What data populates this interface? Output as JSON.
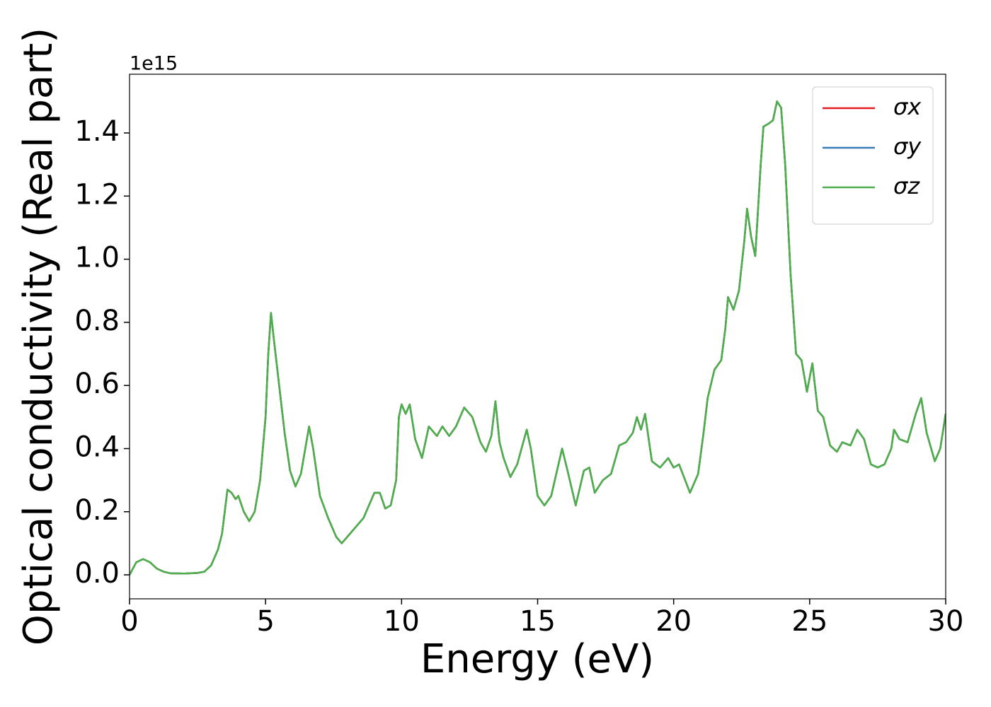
{
  "chart_data": {
    "type": "line",
    "xlabel": "Energy (eV)",
    "ylabel": "Optical conductivity (Real part)",
    "y_offset_label": "1e15",
    "x": [
      0,
      0.25,
      0.5,
      0.75,
      1.0,
      1.25,
      1.5,
      2,
      2.5,
      2.75,
      3.0,
      3.25,
      3.4,
      3.6,
      3.75,
      3.9,
      4.0,
      4.2,
      4.4,
      4.6,
      4.8,
      5.0,
      5.1,
      5.2,
      5.3,
      5.5,
      5.7,
      5.9,
      6.1,
      6.3,
      6.5,
      6.6,
      6.75,
      7.0,
      7.3,
      7.6,
      7.8,
      8.0,
      8.3,
      8.6,
      8.8,
      9.0,
      9.2,
      9.4,
      9.6,
      9.8,
      9.9,
      10.0,
      10.15,
      10.3,
      10.5,
      10.75,
      11.0,
      11.3,
      11.5,
      11.75,
      12.0,
      12.3,
      12.6,
      12.9,
      13.1,
      13.3,
      13.45,
      13.6,
      13.75,
      14.0,
      14.25,
      14.6,
      14.75,
      15.0,
      15.25,
      15.5,
      15.9,
      16.1,
      16.4,
      16.7,
      16.9,
      17.1,
      17.4,
      17.7,
      18.0,
      18.25,
      18.5,
      18.65,
      18.8,
      18.95,
      19.2,
      19.5,
      19.8,
      20.0,
      20.2,
      20.6,
      20.9,
      21.1,
      21.25,
      21.5,
      21.75,
      21.9,
      22.0,
      22.2,
      22.4,
      22.6,
      22.7,
      22.85,
      23.0,
      23.2,
      23.3,
      23.5,
      23.65,
      23.8,
      23.95,
      24.1,
      24.3,
      24.5,
      24.7,
      24.9,
      25.1,
      25.3,
      25.5,
      25.75,
      26.0,
      26.2,
      26.5,
      26.75,
      27.0,
      27.25,
      27.5,
      27.75,
      28.0,
      28.1,
      28.3,
      28.6,
      28.9,
      29.1,
      29.3,
      29.6,
      29.8,
      30.0
    ],
    "series": [
      {
        "name": "σx",
        "color": "#e41a1c",
        "values": [
          0.0,
          0.04,
          0.05,
          0.04,
          0.02,
          0.01,
          0.005,
          0.004,
          0.006,
          0.01,
          0.03,
          0.08,
          0.13,
          0.27,
          0.26,
          0.24,
          0.25,
          0.2,
          0.17,
          0.2,
          0.3,
          0.5,
          0.7,
          0.83,
          0.75,
          0.6,
          0.45,
          0.33,
          0.28,
          0.32,
          0.42,
          0.47,
          0.4,
          0.25,
          0.18,
          0.12,
          0.1,
          0.12,
          0.15,
          0.18,
          0.22,
          0.26,
          0.26,
          0.21,
          0.22,
          0.3,
          0.5,
          0.54,
          0.51,
          0.54,
          0.43,
          0.37,
          0.47,
          0.44,
          0.47,
          0.44,
          0.47,
          0.53,
          0.5,
          0.42,
          0.39,
          0.44,
          0.55,
          0.42,
          0.37,
          0.31,
          0.35,
          0.46,
          0.4,
          0.25,
          0.22,
          0.25,
          0.4,
          0.33,
          0.22,
          0.33,
          0.34,
          0.26,
          0.3,
          0.32,
          0.41,
          0.42,
          0.45,
          0.5,
          0.46,
          0.51,
          0.36,
          0.34,
          0.37,
          0.34,
          0.35,
          0.26,
          0.32,
          0.45,
          0.56,
          0.65,
          0.68,
          0.78,
          0.88,
          0.84,
          0.9,
          1.06,
          1.16,
          1.07,
          1.01,
          1.3,
          1.42,
          1.43,
          1.44,
          1.5,
          1.48,
          1.3,
          0.95,
          0.7,
          0.68,
          0.58,
          0.67,
          0.52,
          0.5,
          0.41,
          0.39,
          0.42,
          0.41,
          0.46,
          0.43,
          0.35,
          0.34,
          0.35,
          0.4,
          0.46,
          0.43,
          0.42,
          0.51,
          0.56,
          0.45,
          0.36,
          0.4,
          0.51
        ]
      },
      {
        "name": "σy",
        "color": "#377eb8",
        "values": [
          0.0,
          0.04,
          0.05,
          0.04,
          0.02,
          0.01,
          0.005,
          0.004,
          0.006,
          0.01,
          0.03,
          0.08,
          0.13,
          0.27,
          0.26,
          0.24,
          0.25,
          0.2,
          0.17,
          0.2,
          0.3,
          0.5,
          0.7,
          0.83,
          0.75,
          0.6,
          0.45,
          0.33,
          0.28,
          0.32,
          0.42,
          0.47,
          0.4,
          0.25,
          0.18,
          0.12,
          0.1,
          0.12,
          0.15,
          0.18,
          0.22,
          0.26,
          0.26,
          0.21,
          0.22,
          0.3,
          0.5,
          0.54,
          0.51,
          0.54,
          0.43,
          0.37,
          0.47,
          0.44,
          0.47,
          0.44,
          0.47,
          0.53,
          0.5,
          0.42,
          0.39,
          0.44,
          0.55,
          0.42,
          0.37,
          0.31,
          0.35,
          0.46,
          0.4,
          0.25,
          0.22,
          0.25,
          0.4,
          0.33,
          0.22,
          0.33,
          0.34,
          0.26,
          0.3,
          0.32,
          0.41,
          0.42,
          0.45,
          0.5,
          0.46,
          0.51,
          0.36,
          0.34,
          0.37,
          0.34,
          0.35,
          0.26,
          0.32,
          0.45,
          0.56,
          0.65,
          0.68,
          0.78,
          0.88,
          0.84,
          0.9,
          1.06,
          1.16,
          1.07,
          1.01,
          1.3,
          1.42,
          1.43,
          1.44,
          1.5,
          1.48,
          1.3,
          0.95,
          0.7,
          0.68,
          0.58,
          0.67,
          0.52,
          0.5,
          0.41,
          0.39,
          0.42,
          0.41,
          0.46,
          0.43,
          0.35,
          0.34,
          0.35,
          0.4,
          0.46,
          0.43,
          0.42,
          0.51,
          0.56,
          0.45,
          0.36,
          0.4,
          0.51
        ]
      },
      {
        "name": "σz",
        "color": "#4daf4a",
        "values": [
          0.0,
          0.04,
          0.05,
          0.04,
          0.02,
          0.01,
          0.005,
          0.004,
          0.006,
          0.01,
          0.03,
          0.08,
          0.13,
          0.27,
          0.26,
          0.24,
          0.25,
          0.2,
          0.17,
          0.2,
          0.3,
          0.5,
          0.7,
          0.83,
          0.75,
          0.6,
          0.45,
          0.33,
          0.28,
          0.32,
          0.42,
          0.47,
          0.4,
          0.25,
          0.18,
          0.12,
          0.1,
          0.12,
          0.15,
          0.18,
          0.22,
          0.26,
          0.26,
          0.21,
          0.22,
          0.3,
          0.5,
          0.54,
          0.51,
          0.54,
          0.43,
          0.37,
          0.47,
          0.44,
          0.47,
          0.44,
          0.47,
          0.53,
          0.5,
          0.42,
          0.39,
          0.44,
          0.55,
          0.42,
          0.37,
          0.31,
          0.35,
          0.46,
          0.4,
          0.25,
          0.22,
          0.25,
          0.4,
          0.33,
          0.22,
          0.33,
          0.34,
          0.26,
          0.3,
          0.32,
          0.41,
          0.42,
          0.45,
          0.5,
          0.46,
          0.51,
          0.36,
          0.34,
          0.37,
          0.34,
          0.35,
          0.26,
          0.32,
          0.45,
          0.56,
          0.65,
          0.68,
          0.78,
          0.88,
          0.84,
          0.9,
          1.06,
          1.16,
          1.07,
          1.01,
          1.3,
          1.42,
          1.43,
          1.44,
          1.5,
          1.48,
          1.3,
          0.95,
          0.7,
          0.68,
          0.58,
          0.67,
          0.52,
          0.5,
          0.41,
          0.39,
          0.42,
          0.41,
          0.46,
          0.43,
          0.35,
          0.34,
          0.35,
          0.4,
          0.46,
          0.43,
          0.42,
          0.51,
          0.56,
          0.45,
          0.36,
          0.4,
          0.51
        ]
      }
    ],
    "xlim": [
      0,
      30
    ],
    "xticks": [
      0,
      5,
      10,
      15,
      20,
      25,
      30
    ],
    "ylim": [
      -0.076,
      1.586
    ],
    "yticks": [
      {
        "value": 0,
        "label": "0.0"
      },
      0.2,
      0.4,
      0.6,
      0.8,
      {
        "value": 1,
        "label": "1.0"
      },
      1.2,
      1.4
    ],
    "grid": false,
    "legend": "upper right"
  }
}
